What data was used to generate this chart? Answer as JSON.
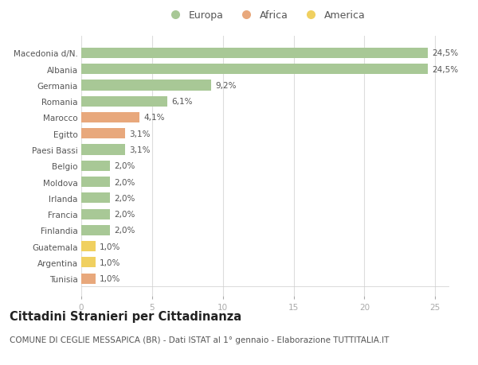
{
  "categories": [
    "Tunisia",
    "Argentina",
    "Guatemala",
    "Finlandia",
    "Francia",
    "Irlanda",
    "Moldova",
    "Belgio",
    "Paesi Bassi",
    "Egitto",
    "Marocco",
    "Romania",
    "Germania",
    "Albania",
    "Macedonia d/N."
  ],
  "values": [
    1.0,
    1.0,
    1.0,
    2.0,
    2.0,
    2.0,
    2.0,
    2.0,
    3.1,
    3.1,
    4.1,
    6.1,
    9.2,
    24.5,
    24.5
  ],
  "continent": [
    "Africa",
    "America",
    "America",
    "Europa",
    "Europa",
    "Europa",
    "Europa",
    "Europa",
    "Europa",
    "Africa",
    "Africa",
    "Europa",
    "Europa",
    "Europa",
    "Europa"
  ],
  "labels": [
    "1,0%",
    "1,0%",
    "1,0%",
    "2,0%",
    "2,0%",
    "2,0%",
    "2,0%",
    "2,0%",
    "3,1%",
    "3,1%",
    "4,1%",
    "6,1%",
    "9,2%",
    "24,5%",
    "24,5%"
  ],
  "colors": {
    "Europa": "#a8c896",
    "Africa": "#e8a87c",
    "America": "#f0d060"
  },
  "title": "Cittadini Stranieri per Cittadinanza",
  "subtitle": "COMUNE DI CEGLIE MESSAPICA (BR) - Dati ISTAT al 1° gennaio - Elaborazione TUTTITALIA.IT",
  "xlim": [
    0,
    26
  ],
  "xticks": [
    0,
    5,
    10,
    15,
    20,
    25
  ],
  "background_color": "#ffffff",
  "grid_color": "#dddddd",
  "bar_height": 0.65,
  "label_fontsize": 7.5,
  "title_fontsize": 10.5,
  "subtitle_fontsize": 7.5,
  "tick_fontsize": 7.5,
  "legend_fontsize": 9
}
